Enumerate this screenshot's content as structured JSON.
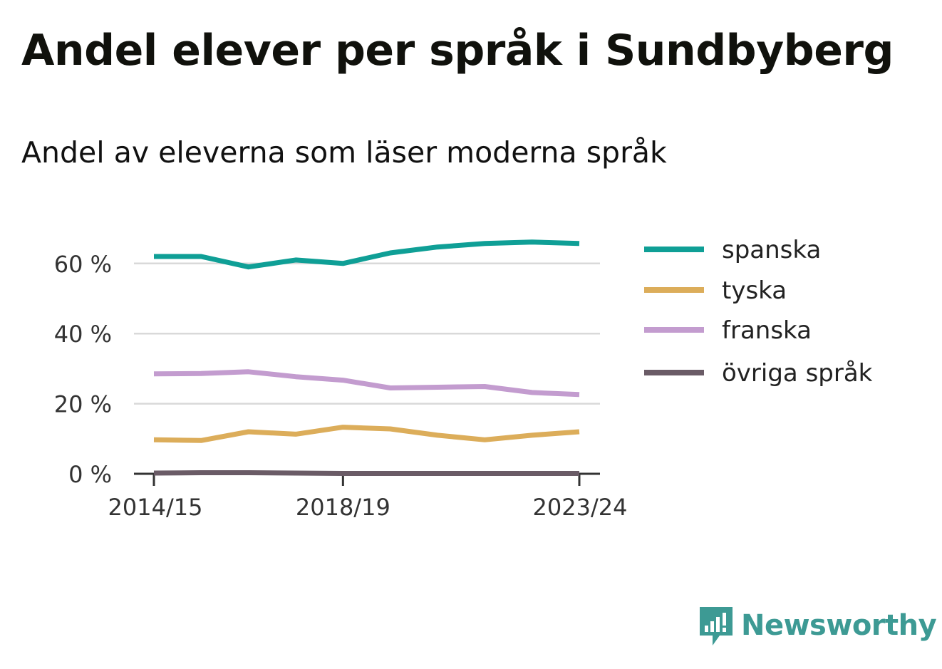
{
  "header": {
    "title": "Andel elever per språk i Sundbyberg",
    "subtitle": "Andel av eleverna som läser moderna språk"
  },
  "brand": {
    "name": "Newsworthy",
    "icon": "newsworthy-logo-icon",
    "color": "#3d9a94"
  },
  "chart_data": {
    "type": "line",
    "title": "Andel elever per språk i Sundbyberg",
    "subtitle": "Andel av eleverna som läser moderna språk",
    "xlabel": "",
    "ylabel": "",
    "x": [
      "2014/15",
      "2015/16",
      "2016/17",
      "2017/18",
      "2018/19",
      "2019/20",
      "2020/21",
      "2021/22",
      "2022/23",
      "2023/24"
    ],
    "x_tick_labels": [
      "2014/15",
      "2018/19",
      "2023/24"
    ],
    "y_ticks": [
      0,
      20,
      40,
      60
    ],
    "y_tick_labels": [
      "0 %",
      "20 %",
      "40 %",
      "60 %"
    ],
    "ylim": [
      0,
      70
    ],
    "grid": true,
    "legend_position": "right",
    "series": [
      {
        "name": "spanska",
        "color": "#0f9f96",
        "values": [
          62,
          62,
          59,
          61,
          60,
          63,
          64.7,
          65.7,
          66.1,
          65.7
        ]
      },
      {
        "name": "tyska",
        "color": "#dcad5a",
        "values": [
          9.7,
          9.5,
          12,
          11.3,
          13.3,
          12.8,
          11,
          9.7,
          11,
          12
        ]
      },
      {
        "name": "franska",
        "color": "#c39ccf",
        "values": [
          28.5,
          28.6,
          29.1,
          27.7,
          26.7,
          24.5,
          24.7,
          24.9,
          23.2,
          22.6
        ]
      },
      {
        "name": "övriga språk",
        "color": "#6a5b66",
        "values": [
          0.2,
          0.3,
          0.3,
          0.2,
          0.1,
          0.1,
          0.1,
          0.1,
          0.1,
          0.1
        ]
      }
    ]
  }
}
